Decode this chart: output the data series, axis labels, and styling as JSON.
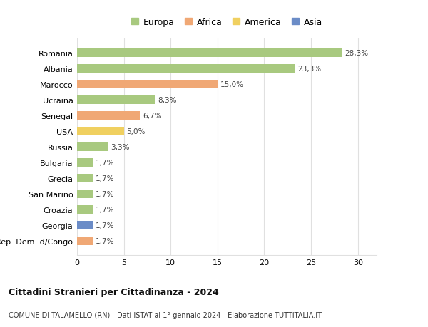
{
  "countries": [
    "Romania",
    "Albania",
    "Marocco",
    "Ucraina",
    "Senegal",
    "USA",
    "Russia",
    "Bulgaria",
    "Grecia",
    "San Marino",
    "Croazia",
    "Georgia",
    "Rep. Dem. d/Congo"
  ],
  "values": [
    28.3,
    23.3,
    15.0,
    8.3,
    6.7,
    5.0,
    3.3,
    1.7,
    1.7,
    1.7,
    1.7,
    1.7,
    1.7
  ],
  "labels": [
    "28,3%",
    "23,3%",
    "15,0%",
    "8,3%",
    "6,7%",
    "5,0%",
    "3,3%",
    "1,7%",
    "1,7%",
    "1,7%",
    "1,7%",
    "1,7%",
    "1,7%"
  ],
  "continents": [
    "Europa",
    "Europa",
    "Africa",
    "Europa",
    "Africa",
    "America",
    "Europa",
    "Europa",
    "Europa",
    "Europa",
    "Europa",
    "Asia",
    "Africa"
  ],
  "colors": {
    "Europa": "#a8c97f",
    "Africa": "#f0a875",
    "America": "#f0d060",
    "Asia": "#6b8cc7"
  },
  "legend_order": [
    "Europa",
    "Africa",
    "America",
    "Asia"
  ],
  "title": "Cittadini Stranieri per Cittadinanza - 2024",
  "subtitle": "COMUNE DI TALAMELLO (RN) - Dati ISTAT al 1° gennaio 2024 - Elaborazione TUTTITALIA.IT",
  "xlim": [
    0,
    32
  ],
  "xticks": [
    0,
    5,
    10,
    15,
    20,
    25,
    30
  ],
  "background_color": "#ffffff",
  "grid_color": "#e0e0e0"
}
